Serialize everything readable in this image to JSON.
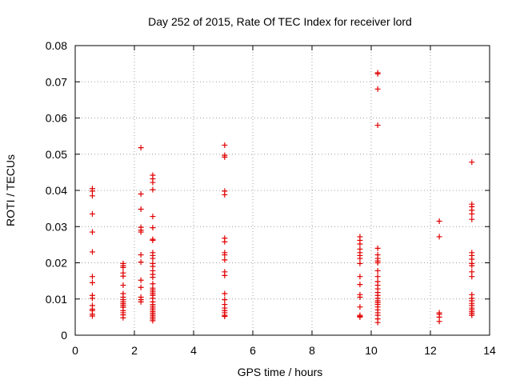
{
  "chart_data": {
    "type": "scatter",
    "title": "Day 252 of 2015, Rate Of TEC Index for receiver lord",
    "xlabel": "GPS time / hours",
    "ylabel": "ROTI / TECUs",
    "xlim": [
      0,
      14
    ],
    "ylim": [
      0,
      0.08
    ],
    "xticks": [
      0,
      2,
      4,
      6,
      8,
      10,
      12,
      14
    ],
    "yticks": [
      0,
      0.01,
      0.02,
      0.03,
      0.04,
      0.05,
      0.06,
      0.07,
      0.08
    ],
    "xtick_labels": [
      "0",
      "2",
      "4",
      "6",
      "8",
      "10",
      "12",
      "14"
    ],
    "ytick_labels": [
      "0",
      "0.01",
      "0.02",
      "0.03",
      "0.04",
      "0.05",
      "0.06",
      "0.07",
      "0.08"
    ],
    "grid": true,
    "marker": "plus",
    "color": "#e00000",
    "points": [
      [
        0.58,
        0.0405
      ],
      [
        0.58,
        0.0398
      ],
      [
        0.58,
        0.0385
      ],
      [
        0.58,
        0.0335
      ],
      [
        0.58,
        0.0285
      ],
      [
        0.58,
        0.023
      ],
      [
        0.58,
        0.0162
      ],
      [
        0.58,
        0.0145
      ],
      [
        0.58,
        0.011
      ],
      [
        0.58,
        0.0102
      ],
      [
        0.58,
        0.0082
      ],
      [
        0.58,
        0.0072
      ],
      [
        0.58,
        0.0068
      ],
      [
        0.58,
        0.0058
      ],
      [
        0.58,
        0.0053
      ],
      [
        1.62,
        0.0198
      ],
      [
        1.62,
        0.0192
      ],
      [
        1.62,
        0.0187
      ],
      [
        1.62,
        0.0172
      ],
      [
        1.62,
        0.0163
      ],
      [
        1.62,
        0.0138
      ],
      [
        1.62,
        0.0115
      ],
      [
        1.62,
        0.0105
      ],
      [
        1.62,
        0.0098
      ],
      [
        1.62,
        0.0092
      ],
      [
        1.62,
        0.0087
      ],
      [
        1.62,
        0.0082
      ],
      [
        1.62,
        0.0077
      ],
      [
        1.62,
        0.0068
      ],
      [
        1.62,
        0.0062
      ],
      [
        1.62,
        0.0056
      ],
      [
        1.62,
        0.0048
      ],
      [
        2.22,
        0.0518
      ],
      [
        2.22,
        0.039
      ],
      [
        2.22,
        0.0348
      ],
      [
        2.22,
        0.0298
      ],
      [
        2.22,
        0.029
      ],
      [
        2.22,
        0.0285
      ],
      [
        2.22,
        0.0222
      ],
      [
        2.22,
        0.0202
      ],
      [
        2.22,
        0.0152
      ],
      [
        2.22,
        0.0132
      ],
      [
        2.22,
        0.0105
      ],
      [
        2.22,
        0.0098
      ],
      [
        2.22,
        0.0092
      ],
      [
        2.62,
        0.0442
      ],
      [
        2.62,
        0.0432
      ],
      [
        2.62,
        0.0422
      ],
      [
        2.62,
        0.0402
      ],
      [
        2.62,
        0.0328
      ],
      [
        2.62,
        0.0297
      ],
      [
        2.62,
        0.0265
      ],
      [
        2.62,
        0.0262
      ],
      [
        2.62,
        0.0228
      ],
      [
        2.62,
        0.022
      ],
      [
        2.62,
        0.0212
      ],
      [
        2.62,
        0.0198
      ],
      [
        2.62,
        0.019
      ],
      [
        2.62,
        0.0178
      ],
      [
        2.62,
        0.0168
      ],
      [
        2.62,
        0.016
      ],
      [
        2.62,
        0.0142
      ],
      [
        2.62,
        0.013
      ],
      [
        2.62,
        0.0125
      ],
      [
        2.62,
        0.012
      ],
      [
        2.62,
        0.0115
      ],
      [
        2.62,
        0.011
      ],
      [
        2.62,
        0.0102
      ],
      [
        2.62,
        0.0092
      ],
      [
        2.62,
        0.0085
      ],
      [
        2.62,
        0.008
      ],
      [
        2.62,
        0.0075
      ],
      [
        2.62,
        0.007
      ],
      [
        2.62,
        0.0065
      ],
      [
        2.62,
        0.006
      ],
      [
        2.62,
        0.0055
      ],
      [
        2.62,
        0.005
      ],
      [
        2.62,
        0.0045
      ],
      [
        2.62,
        0.004
      ],
      [
        5.05,
        0.0525
      ],
      [
        5.05,
        0.0497
      ],
      [
        5.05,
        0.0492
      ],
      [
        5.05,
        0.0398
      ],
      [
        5.05,
        0.0388
      ],
      [
        5.05,
        0.0268
      ],
      [
        5.05,
        0.0258
      ],
      [
        5.05,
        0.0228
      ],
      [
        5.05,
        0.0222
      ],
      [
        5.05,
        0.0208
      ],
      [
        5.05,
        0.0175
      ],
      [
        5.05,
        0.0165
      ],
      [
        5.05,
        0.0115
      ],
      [
        5.05,
        0.0098
      ],
      [
        5.05,
        0.0085
      ],
      [
        5.05,
        0.0075
      ],
      [
        5.05,
        0.0068
      ],
      [
        5.05,
        0.0062
      ],
      [
        5.05,
        0.0055
      ],
      [
        5.05,
        0.0052
      ],
      [
        9.62,
        0.0272
      ],
      [
        9.62,
        0.0262
      ],
      [
        9.62,
        0.0252
      ],
      [
        9.62,
        0.0238
      ],
      [
        9.62,
        0.0228
      ],
      [
        9.62,
        0.022
      ],
      [
        9.62,
        0.0212
      ],
      [
        9.62,
        0.0198
      ],
      [
        9.62,
        0.0162
      ],
      [
        9.62,
        0.014
      ],
      [
        9.62,
        0.0112
      ],
      [
        9.62,
        0.0105
      ],
      [
        9.62,
        0.0078
      ],
      [
        9.62,
        0.0055
      ],
      [
        9.62,
        0.0052
      ],
      [
        9.62,
        0.005
      ],
      [
        10.22,
        0.0725
      ],
      [
        10.22,
        0.0722
      ],
      [
        10.22,
        0.068
      ],
      [
        10.22,
        0.058
      ],
      [
        10.22,
        0.024
      ],
      [
        10.22,
        0.0222
      ],
      [
        10.22,
        0.0212
      ],
      [
        10.22,
        0.0205
      ],
      [
        10.22,
        0.02
      ],
      [
        10.22,
        0.0178
      ],
      [
        10.22,
        0.0162
      ],
      [
        10.22,
        0.0148
      ],
      [
        10.22,
        0.0138
      ],
      [
        10.22,
        0.0128
      ],
      [
        10.22,
        0.0118
      ],
      [
        10.22,
        0.011
      ],
      [
        10.22,
        0.0102
      ],
      [
        10.22,
        0.0095
      ],
      [
        10.22,
        0.009
      ],
      [
        10.22,
        0.0085
      ],
      [
        10.22,
        0.0078
      ],
      [
        10.22,
        0.007
      ],
      [
        10.22,
        0.0062
      ],
      [
        10.22,
        0.0055
      ],
      [
        10.22,
        0.0045
      ],
      [
        10.22,
        0.0035
      ],
      [
        12.3,
        0.0315
      ],
      [
        12.3,
        0.0272
      ],
      [
        12.3,
        0.0062
      ],
      [
        12.3,
        0.0058
      ],
      [
        12.3,
        0.005
      ],
      [
        12.3,
        0.0038
      ],
      [
        13.4,
        0.0478
      ],
      [
        13.4,
        0.0362
      ],
      [
        13.4,
        0.0355
      ],
      [
        13.4,
        0.0345
      ],
      [
        13.4,
        0.0335
      ],
      [
        13.4,
        0.032
      ],
      [
        13.4,
        0.0228
      ],
      [
        13.4,
        0.022
      ],
      [
        13.4,
        0.021
      ],
      [
        13.4,
        0.0198
      ],
      [
        13.4,
        0.0192
      ],
      [
        13.4,
        0.0175
      ],
      [
        13.4,
        0.0162
      ],
      [
        13.4,
        0.0112
      ],
      [
        13.4,
        0.0102
      ],
      [
        13.4,
        0.0095
      ],
      [
        13.4,
        0.0088
      ],
      [
        13.4,
        0.0082
      ],
      [
        13.4,
        0.0075
      ],
      [
        13.4,
        0.007
      ],
      [
        13.4,
        0.0065
      ],
      [
        13.4,
        0.006
      ],
      [
        13.4,
        0.0055
      ]
    ]
  }
}
